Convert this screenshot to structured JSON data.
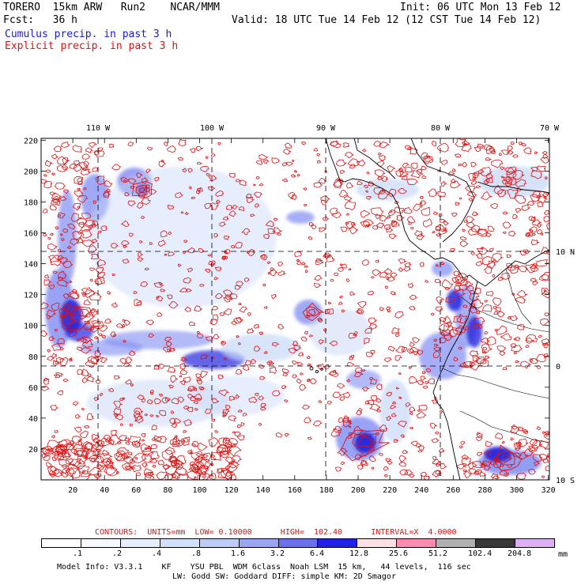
{
  "header": {
    "title_left": "TORERO  15km ARW   Run2    NCAR/MMM",
    "init": "Init: 06 UTC Mon 13 Feb 12",
    "fcst": "Fcst:   36 h",
    "valid": "Valid: 18 UTC Tue 14 Feb 12 (12 CST Tue 14 Feb 12)",
    "cumulus": "Cumulus precip. in past 3 h",
    "explicit": "Explicit precip. in past 3 h"
  },
  "map": {
    "top_lon_labels": [
      "110 W",
      "100 W",
      "90 W",
      "80 W",
      "70 W"
    ],
    "right_lat_labels": [
      "10 N",
      "0",
      "10 S"
    ],
    "y_grid_labels": [
      "220",
      "200",
      "180",
      "160",
      "140",
      "120",
      "100",
      "80",
      "60",
      "40",
      "20"
    ],
    "x_grid_labels": [
      "20",
      "40",
      "60",
      "80",
      "100",
      "120",
      "140",
      "160",
      "180",
      "200",
      "220",
      "240",
      "260",
      "280",
      "300",
      "320"
    ],
    "colors": {
      "explicit_contour": "#e01010",
      "coast": "#000000",
      "cumulus_light": "#c8d8f8",
      "cumulus_mid": "#7f8cf2",
      "cumulus_dark": "#2525e0"
    }
  },
  "legend": {
    "contours_line": "CONTOURS:  UNITS=mm  LOW= 0.10000      HIGH=  102.40      INTERVAL=X  4.0000",
    "bins": [
      {
        "label": ".1",
        "color": "#ffffff"
      },
      {
        "label": ".2",
        "color": "#f5f8ff"
      },
      {
        "label": ".4",
        "color": "#e4eefe"
      },
      {
        "label": ".8",
        "color": "#d2e1fb"
      },
      {
        "label": "1.6",
        "color": "#bccbf9"
      },
      {
        "label": "3.2",
        "color": "#9aa6f5"
      },
      {
        "label": "6.4",
        "color": "#6a70ee"
      },
      {
        "label": "12.8",
        "color": "#2020e6"
      },
      {
        "label": "25.6",
        "color": "#ffe0e4"
      },
      {
        "label": "51.2",
        "color": "#ff8cb0"
      },
      {
        "label": "102.4",
        "color": "#b0b0b0"
      },
      {
        "label": "204.8",
        "color": "#383838"
      },
      {
        "label": "",
        "color": "#dcb0f2"
      }
    ],
    "unit": "mm"
  },
  "footer": {
    "line1": "Model Info: V3.3.1    KF    YSU PBL  WDM 6class  Noah LSM  15 km,   44 levels,  116 sec",
    "line2": "LW: Godd SW: Goddard DIFF: simple KM: 2D Smagor"
  }
}
